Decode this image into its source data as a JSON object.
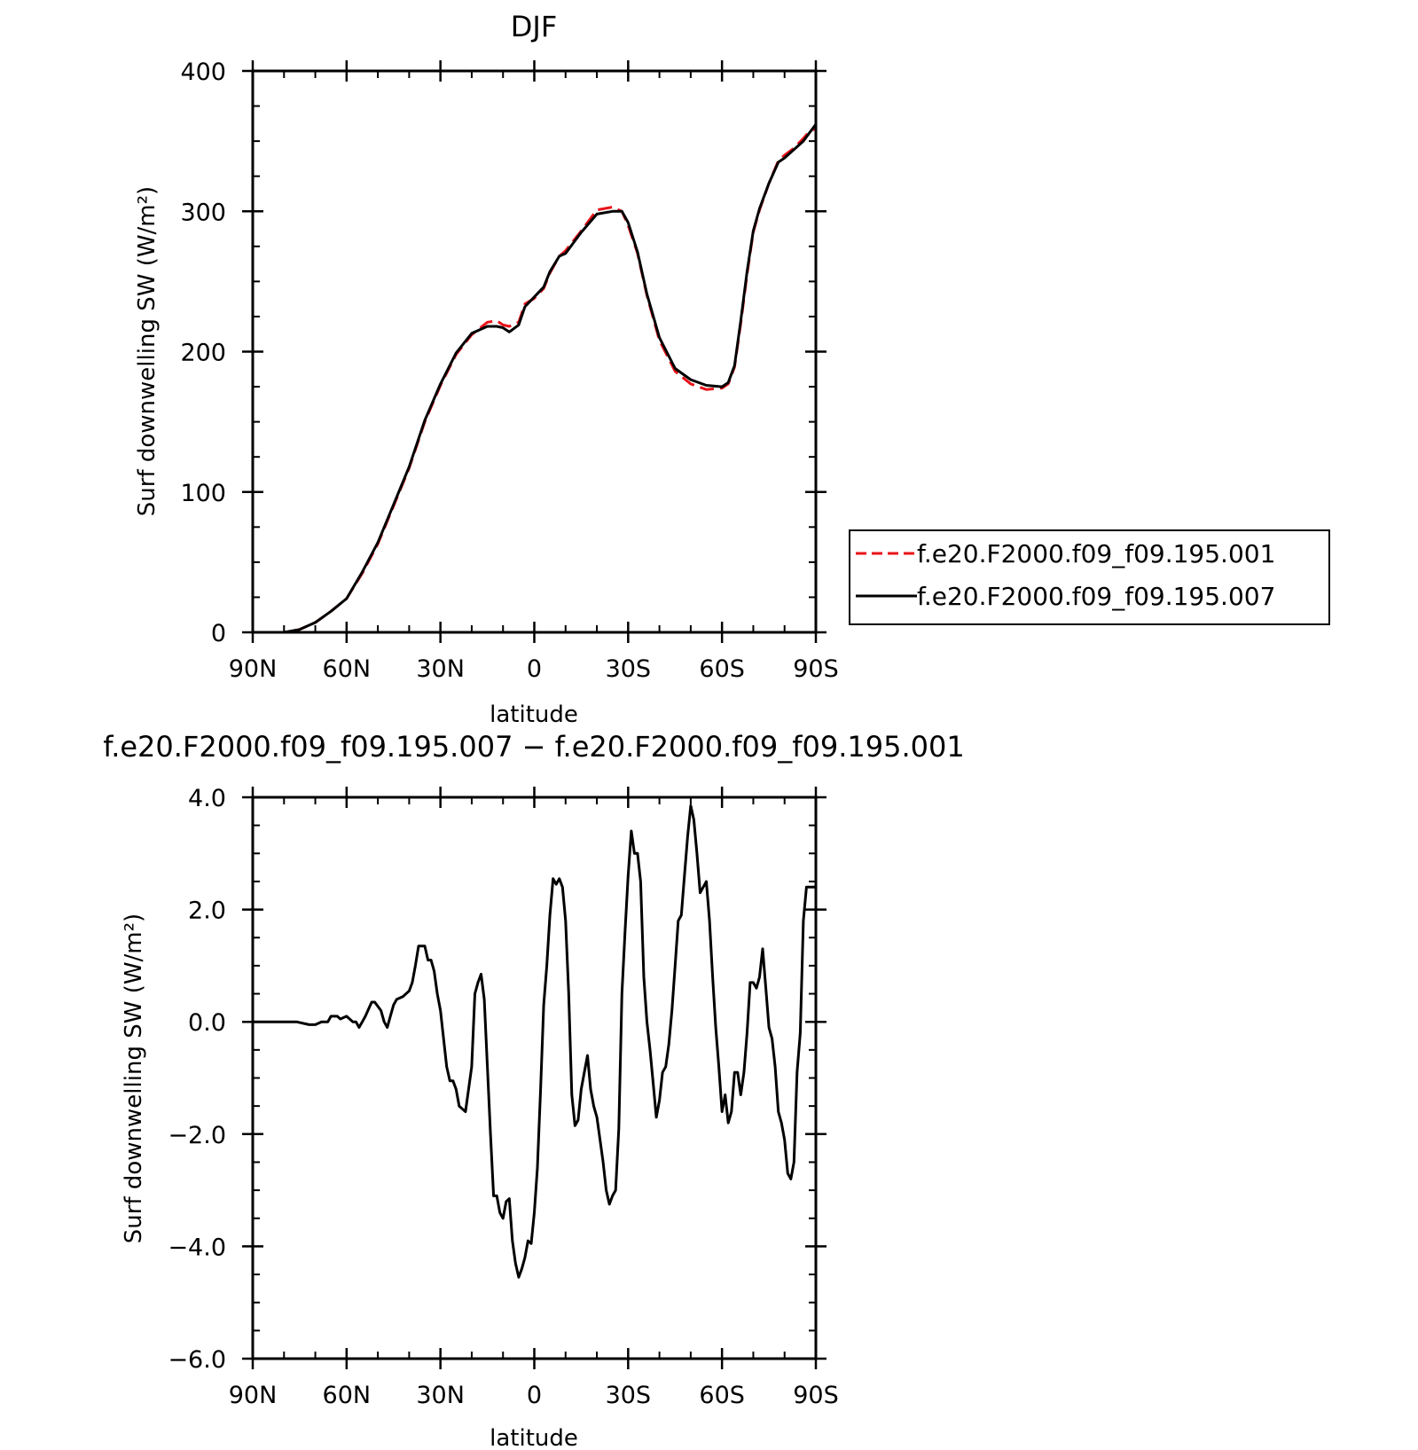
{
  "chart_data": [
    {
      "type": "line",
      "title": "DJF",
      "xlabel": "latitude",
      "ylabel": "Surf downwelling SW (W/m²)",
      "xlim": [
        90,
        -90
      ],
      "ylim": [
        0,
        400
      ],
      "x_ticks": [
        90,
        60,
        30,
        0,
        -30,
        -60,
        -90
      ],
      "x_tick_labels": [
        "90N",
        "60N",
        "30N",
        "0",
        "30S",
        "60S",
        "90S"
      ],
      "y_ticks": [
        0,
        100,
        200,
        300,
        400
      ],
      "y_tick_labels": [
        "0",
        "100",
        "200",
        "300",
        "400"
      ],
      "grid": false,
      "legend_position": "right",
      "series": [
        {
          "name": "f.e20.F2000.f09_f09.195.001",
          "color": "#e8141a",
          "dash": "dashed",
          "x": [
            90,
            80,
            75,
            70,
            65,
            60,
            55,
            50,
            45,
            40,
            35,
            30,
            25,
            20,
            15,
            12,
            10,
            8,
            5,
            3,
            0,
            -3,
            -5,
            -8,
            -10,
            -15,
            -20,
            -25,
            -28,
            -30,
            -33,
            -36,
            -40,
            -45,
            -50,
            -55,
            -60,
            -62,
            -64,
            -66,
            -68,
            -70,
            -72,
            -75,
            -78,
            -80,
            -83,
            -86,
            -88,
            -90
          ],
          "y": [
            0,
            0,
            2,
            7,
            15,
            24,
            42,
            63,
            90,
            117,
            150,
            176,
            198,
            212,
            221,
            222,
            219,
            218,
            221,
            234,
            238,
            245,
            256,
            268,
            272,
            286,
            301,
            303,
            300,
            290,
            270,
            240,
            208,
            186,
            177,
            173,
            174,
            177,
            189,
            220,
            255,
            285,
            301,
            320,
            336,
            340,
            345,
            352,
            357,
            359
          ]
        },
        {
          "name": "f.e20.F2000.f09_f09.195.007",
          "color": "#000000",
          "dash": "solid",
          "x": [
            90,
            80,
            75,
            70,
            65,
            60,
            55,
            50,
            45,
            40,
            35,
            30,
            25,
            20,
            15,
            12,
            10,
            8,
            5,
            3,
            0,
            -3,
            -5,
            -8,
            -10,
            -15,
            -20,
            -25,
            -28,
            -30,
            -33,
            -36,
            -40,
            -45,
            -50,
            -55,
            -60,
            -62,
            -64,
            -66,
            -68,
            -70,
            -72,
            -75,
            -78,
            -80,
            -83,
            -86,
            -88,
            -90
          ],
          "y": [
            0,
            0,
            2,
            7,
            15,
            24,
            43,
            64,
            91,
            118,
            151,
            177,
            199,
            213,
            218,
            218,
            217,
            214,
            219,
            232,
            239,
            246,
            257,
            268,
            270,
            285,
            298,
            300,
            300,
            292,
            271,
            241,
            210,
            188,
            180,
            176,
            175,
            178,
            190,
            222,
            257,
            286,
            302,
            320,
            335,
            338,
            344,
            350,
            356,
            362
          ]
        }
      ]
    },
    {
      "type": "line",
      "title": "f.e20.F2000.f09_f09.195.007 − f.e20.F2000.f09_f09.195.001",
      "xlabel": "latitude",
      "ylabel": "Surf downwelling SW (W/m²)",
      "xlim": [
        90,
        -90
      ],
      "ylim": [
        -6,
        4
      ],
      "x_ticks": [
        90,
        60,
        30,
        0,
        -30,
        -60,
        -90
      ],
      "x_tick_labels": [
        "90N",
        "60N",
        "30N",
        "0",
        "30S",
        "60S",
        "90S"
      ],
      "y_ticks": [
        -6,
        -4,
        -2,
        0,
        2,
        4
      ],
      "y_tick_labels": [
        "−6.0",
        "−4.0",
        "−2.0",
        "0.0",
        "2.0",
        "4.0"
      ],
      "grid": false,
      "series": [
        {
          "color": "#000000",
          "dash": "solid",
          "x": [
            90,
            80,
            76,
            72,
            70,
            68,
            67,
            66,
            65,
            63,
            62,
            60,
            58,
            57,
            56,
            55,
            54,
            52,
            51,
            49,
            48,
            47,
            46,
            45,
            44,
            42,
            41,
            40,
            39,
            38,
            37,
            35,
            34,
            33,
            32,
            31,
            30,
            29,
            28,
            27,
            26,
            25,
            24,
            22,
            21,
            20,
            19,
            18,
            17,
            16,
            15,
            14,
            13,
            12,
            11,
            10,
            9,
            8,
            7,
            6,
            5,
            4,
            3,
            2,
            1,
            0,
            -1,
            -2,
            -3,
            -4,
            -5,
            -6,
            -7,
            -8,
            -9,
            -10,
            -11,
            -12,
            -13,
            -14,
            -15,
            -16,
            -17,
            -18,
            -19,
            -20,
            -21,
            -22,
            -23,
            -24,
            -25,
            -26,
            -27,
            -28,
            -29,
            -30,
            -31,
            -32,
            -33,
            -34,
            -35,
            -36,
            -37,
            -38,
            -39,
            -40,
            -41,
            -42,
            -43,
            -44,
            -45,
            -46,
            -47,
            -48,
            -49,
            -50,
            -51,
            -52,
            -53,
            -54,
            -55,
            -56,
            -57,
            -58,
            -59,
            -60,
            -61,
            -62,
            -63,
            -64,
            -65,
            -66,
            -67,
            -68,
            -69,
            -70,
            -71,
            -72,
            -73,
            -74,
            -75,
            -76,
            -77,
            -78,
            -79,
            -80,
            -81,
            -82,
            -83,
            -84,
            -85,
            -86,
            -87,
            -88,
            -89,
            -90
          ],
          "y": [
            0,
            0,
            0,
            -0.05,
            -0.05,
            0,
            0,
            0,
            0.1,
            0.1,
            0.05,
            0.1,
            0,
            0,
            -0.1,
            0,
            0.1,
            0.35,
            0.35,
            0.2,
            0,
            -0.1,
            0.1,
            0.3,
            0.4,
            0.45,
            0.5,
            0.55,
            0.7,
            1.0,
            1.35,
            1.35,
            1.1,
            1.1,
            0.9,
            0.5,
            0.2,
            -0.3,
            -0.8,
            -1.05,
            -1.05,
            -1.2,
            -1.5,
            -1.6,
            -1.2,
            -0.8,
            0.5,
            0.7,
            0.85,
            0.4,
            -0.8,
            -2.0,
            -3.1,
            -3.1,
            -3.4,
            -3.5,
            -3.2,
            -3.15,
            -3.9,
            -4.3,
            -4.55,
            -4.4,
            -4.2,
            -3.9,
            -3.95,
            -3.4,
            -2.6,
            -1.2,
            0.3,
            1.0,
            1.9,
            2.55,
            2.45,
            2.55,
            2.4,
            1.8,
            0.5,
            -1.3,
            -1.85,
            -1.75,
            -1.2,
            -0.9,
            -0.6,
            -1.2,
            -1.5,
            -1.7,
            -2.1,
            -2.5,
            -3.0,
            -3.25,
            -3.1,
            -3.0,
            -1.9,
            0.5,
            1.6,
            2.6,
            3.4,
            3.0,
            3.0,
            2.5,
            0.8,
            0.0,
            -0.5,
            -1.1,
            -1.7,
            -1.4,
            -0.9,
            -0.8,
            -0.4,
            0.2,
            1.0,
            1.8,
            1.9,
            2.6,
            3.3,
            3.85,
            3.6,
            3.0,
            2.3,
            2.4,
            2.5,
            1.8,
            0.8,
            -0.1,
            -0.8,
            -1.6,
            -1.3,
            -1.8,
            -1.6,
            -0.9,
            -0.9,
            -1.3,
            -0.9,
            -0.2,
            0.7,
            0.7,
            0.6,
            0.8,
            1.3,
            0.6,
            -0.1,
            -0.3,
            -0.8,
            -1.6,
            -1.8,
            -2.1,
            -2.7,
            -2.8,
            -2.5,
            -0.9,
            -0.2,
            1.8,
            2.4,
            2.4,
            2.4,
            2.4
          ]
        }
      ]
    }
  ]
}
